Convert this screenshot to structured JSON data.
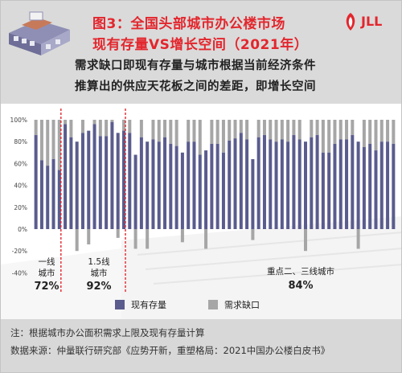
{
  "header": {
    "title_line1": "图3：全国头部城市办公楼市场",
    "title_line2": "现有存量VS增长空间（2021年）",
    "subtitle_line1": "需求缺口即现有存量与城市根据当前经济条件",
    "subtitle_line2": "推算出的供应天花板之间的差距，即增长空间",
    "logo_text": "JLL",
    "logo_color": "#e3262d"
  },
  "footer": {
    "note": "注：根据城市办公面积需求上限及现有存量计算",
    "source": "数据来源：仲量联行研究部《应势开新，重塑格局：2021中国办公楼白皮书》"
  },
  "chart_data": {
    "type": "bar",
    "x_count": 62,
    "ylim": [
      -40,
      100
    ],
    "ytick_labels": [
      "100%",
      "80%",
      "60%",
      "40%",
      "20%",
      "0%",
      "-20%",
      "-40%"
    ],
    "ytick_values": [
      100,
      80,
      60,
      40,
      20,
      0,
      -20,
      -40
    ],
    "series": [
      {
        "name": "现有存量",
        "color": "#5a5c8e",
        "values": [
          86,
          63,
          58,
          64,
          54,
          96,
          84,
          80,
          88,
          90,
          96,
          85,
          85,
          98,
          88,
          90,
          88,
          68,
          84,
          80,
          82,
          80,
          84,
          78,
          76,
          70,
          80,
          80,
          68,
          72,
          78,
          78,
          70,
          81,
          83,
          88,
          82,
          64,
          84,
          86,
          82,
          80,
          82,
          80,
          86,
          82,
          80,
          84,
          86,
          70,
          70,
          78,
          82,
          82,
          86,
          80,
          75,
          78,
          72,
          80,
          80,
          78
        ]
      },
      {
        "name": "需求缺口",
        "color": "#a6a6a6",
        "values": [
          14,
          37,
          42,
          36,
          46,
          4,
          16,
          -20,
          12,
          -14,
          4,
          15,
          15,
          2,
          -8,
          10,
          12,
          -18,
          16,
          -18,
          18,
          20,
          16,
          22,
          24,
          -12,
          20,
          20,
          32,
          -18,
          22,
          22,
          30,
          19,
          17,
          12,
          18,
          -10,
          16,
          14,
          18,
          20,
          18,
          20,
          14,
          18,
          -20,
          16,
          14,
          30,
          30,
          22,
          18,
          18,
          14,
          -18,
          25,
          22,
          28,
          20,
          20,
          22
        ]
      }
    ],
    "groups": [
      {
        "label_line1": "一线",
        "label_line2": "城市",
        "value": "72%",
        "start_index": 0,
        "end_index": 4
      },
      {
        "label_line1": "1.5线",
        "label_line2": "城市",
        "value": "92%",
        "start_index": 5,
        "end_index": 15
      },
      {
        "label_line1": "重点二、三线城市",
        "label_line2": "",
        "value": "84%",
        "start_index": 16,
        "end_index": 61
      }
    ],
    "legend_position": "bottom-center",
    "grid": false,
    "divider_color": "#e3262d"
  }
}
